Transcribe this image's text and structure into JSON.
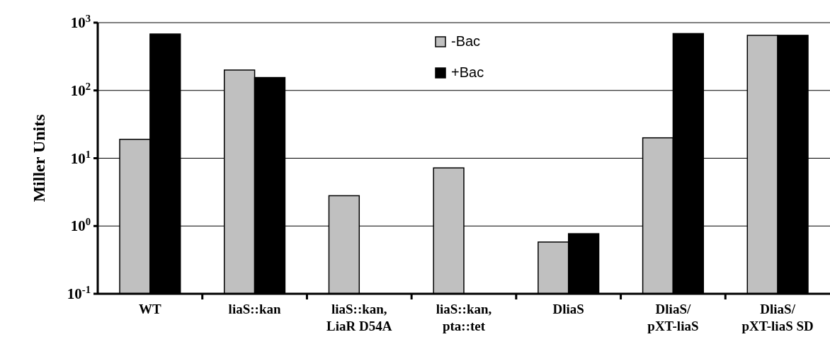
{
  "chart_data": {
    "type": "bar",
    "ylabel": "Miller Units",
    "log": "y",
    "grid": "y",
    "legend": "top",
    "categories": [
      "WT",
      "liaS::kan",
      "liaS::kan,\nLiaR D54A",
      "liaS::kan,\npta::tet",
      "DliaS",
      "DliaS/\npXT-liaS",
      "DliaS/\npXT-liaS SD"
    ],
    "series": [
      {
        "name": "-Bac",
        "color": "#c0c0c0",
        "values": [
          19,
          200,
          2.8,
          7.2,
          0.58,
          20,
          650
        ]
      },
      {
        "name": "+Bac",
        "color": "#000000",
        "values": [
          680,
          155,
          null,
          null,
          0.77,
          690,
          650
        ]
      }
    ],
    "ylim": [
      0.1,
      1000
    ],
    "yticks": [
      {
        "value": 0.1,
        "label": "10$^{-1}$"
      },
      {
        "value": 1,
        "label": "10$^{0}$"
      },
      {
        "value": 10,
        "label": "10$^{1}$"
      },
      {
        "value": 100,
        "label": "10$^{2}$"
      },
      {
        "value": 1000,
        "label": "10$^{3}$"
      }
    ]
  }
}
